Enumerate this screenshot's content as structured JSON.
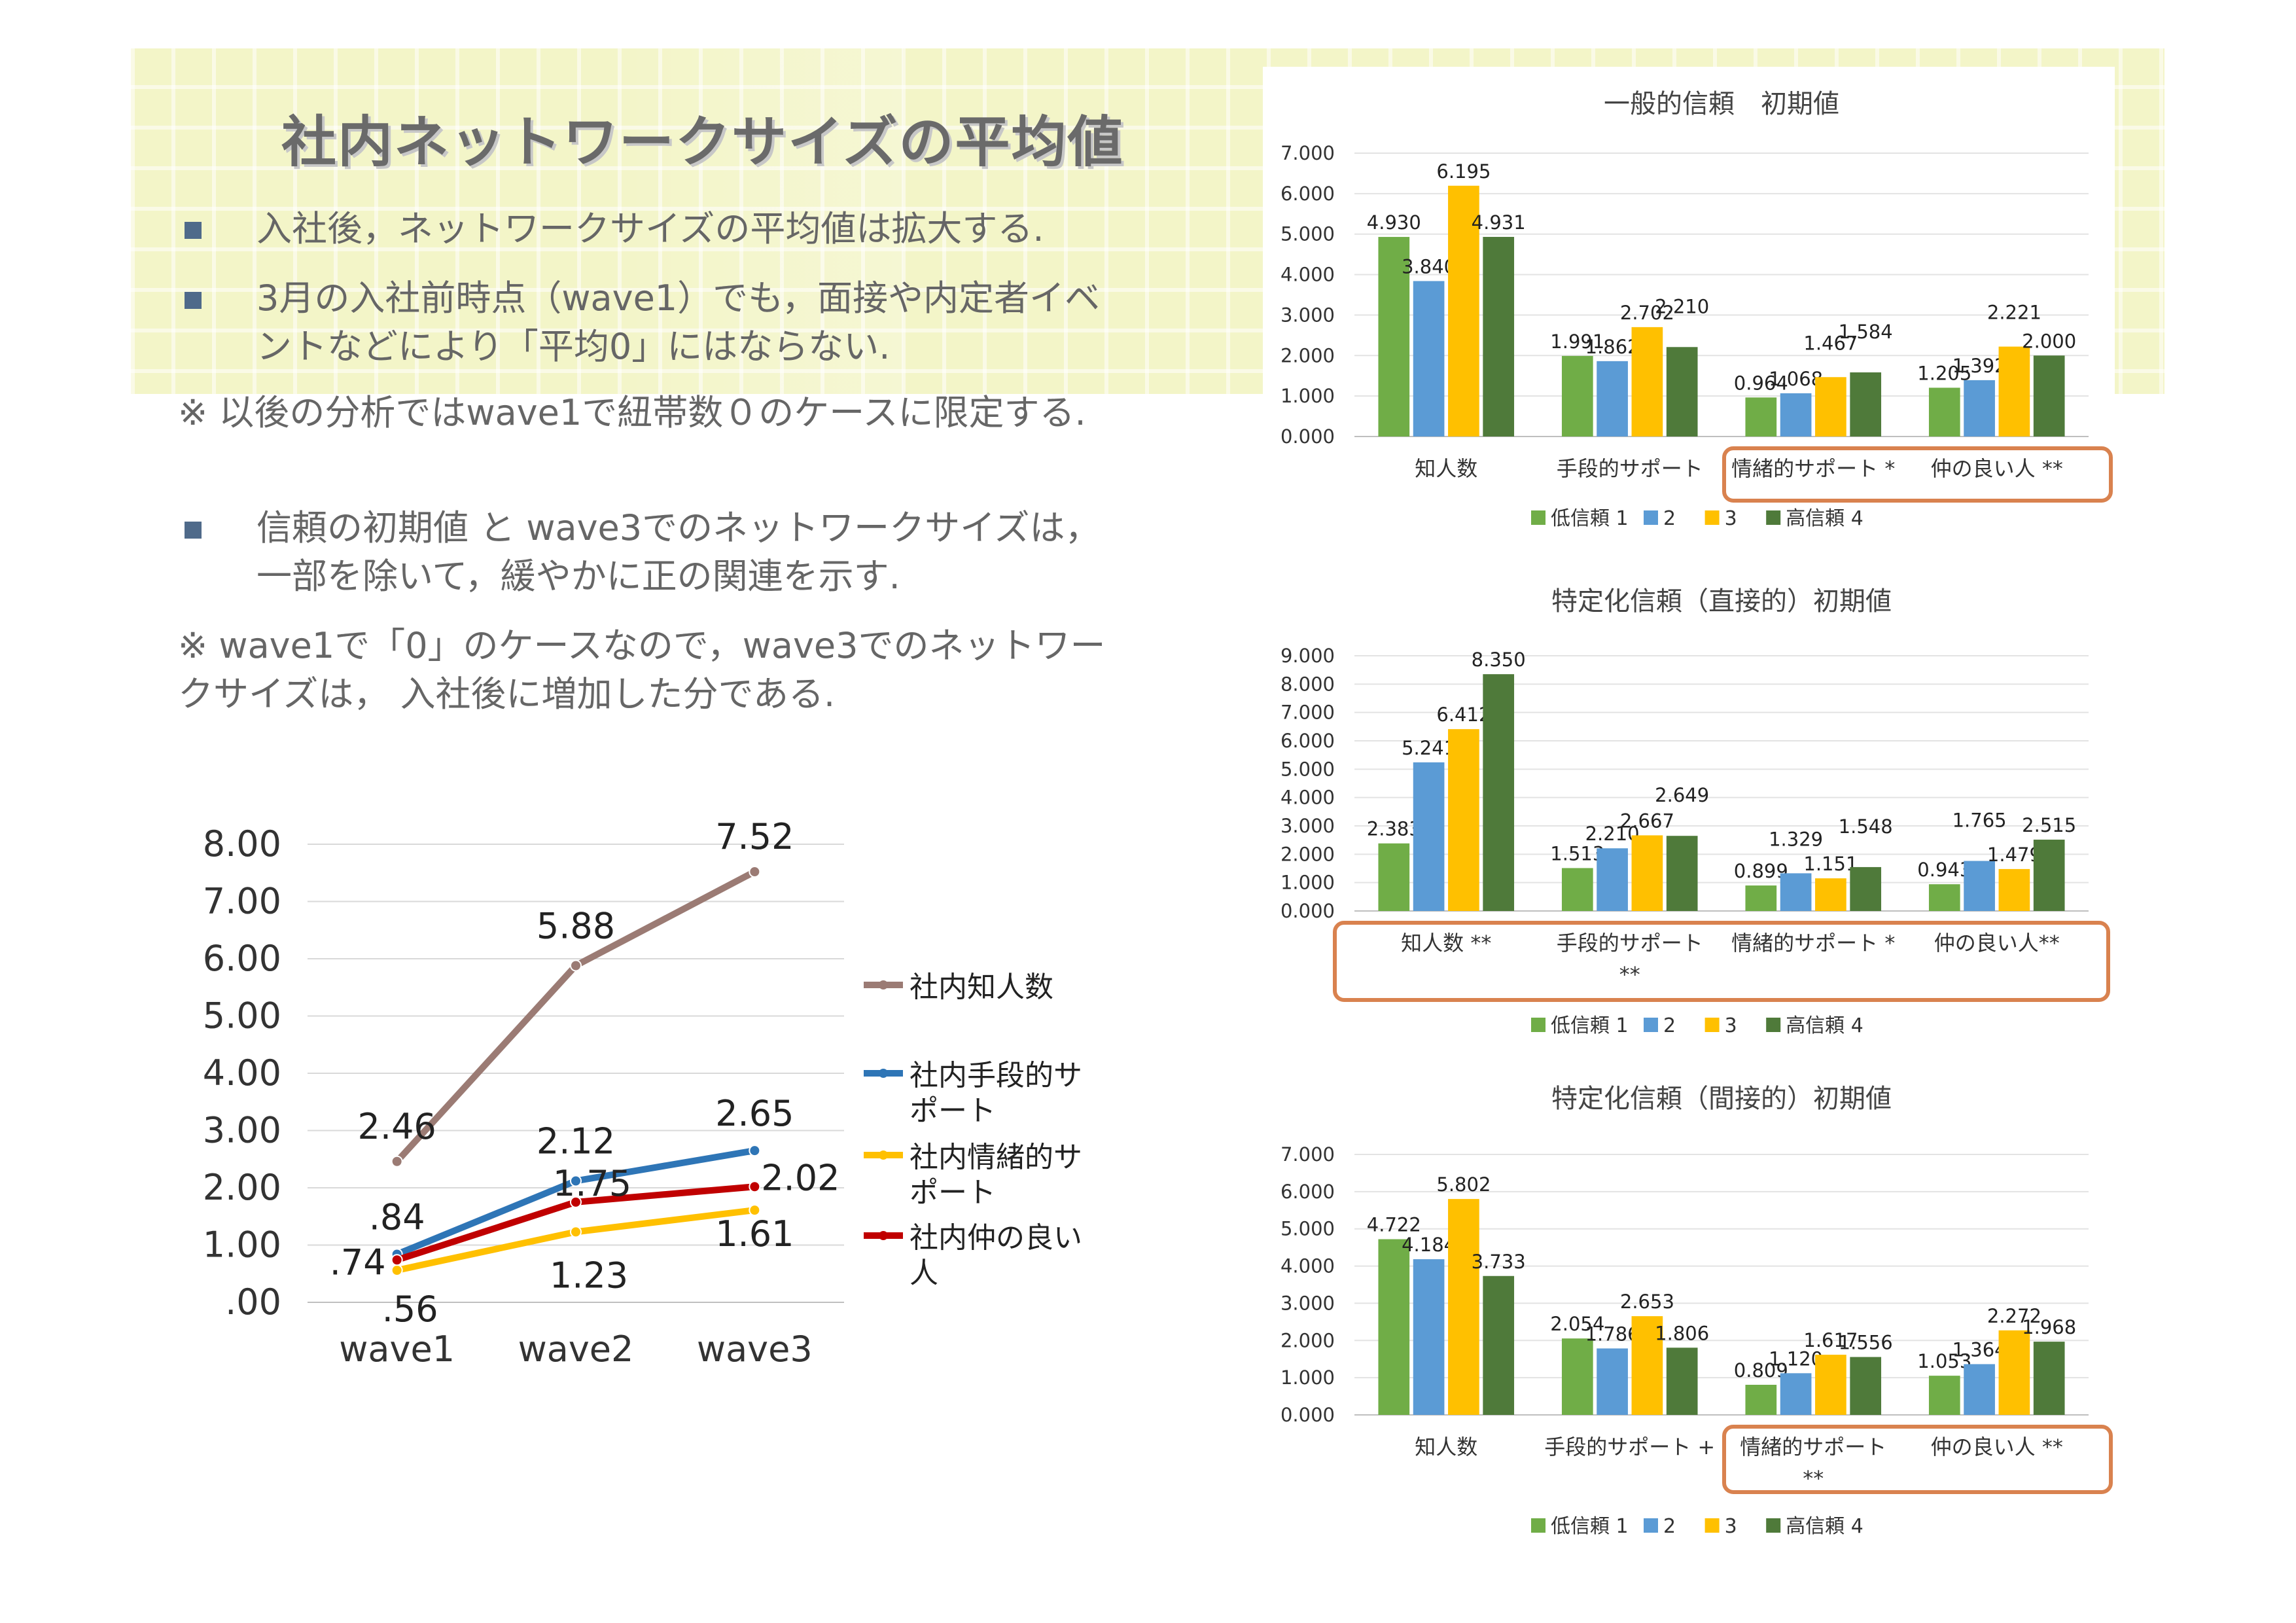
{
  "slide": {
    "title": "社内ネットワークサイズの平均値",
    "bullets": [
      {
        "lines": [
          "入社後，ネットワークサイズの平均値は拡大する."
        ]
      },
      {
        "lines": [
          "3月の入社前時点（wave1）でも，面接や内定者イベ",
          "ントなどにより「平均0」にはならない."
        ]
      },
      {
        "lines": [
          "信頼の初期値 と wave3でのネットワークサイズは，",
          "一部を除いて，緩やかに正の関連を示す."
        ]
      }
    ],
    "notes": [
      {
        "lines": [
          "※ 以後の分析ではwave1で紐帯数０のケースに限定する."
        ]
      },
      {
        "lines": [
          "※ wave1で「0」のケースなので，wave3でのネットワー",
          "クサイズは， 入社後に増加した分である."
        ]
      }
    ]
  },
  "chart_data": [
    {
      "type": "line",
      "title": "",
      "categories": [
        "wave1",
        "wave2",
        "wave3"
      ],
      "ylim": [
        0,
        8
      ],
      "yticks": [
        ".00",
        "1.00",
        "2.00",
        "3.00",
        "4.00",
        "5.00",
        "6.00",
        "7.00",
        "8.00"
      ],
      "grid": true,
      "legend_position": "right",
      "series": [
        {
          "name": "社内知人数",
          "values": [
            2.46,
            5.88,
            7.52
          ],
          "labels": [
            "2.46",
            "5.88",
            "7.52"
          ],
          "color": "#9b7b74"
        },
        {
          "name": "社内手段的サポート",
          "values": [
            0.84,
            2.12,
            2.65
          ],
          "labels": [
            ".84",
            "2.12",
            "2.65"
          ],
          "color": "#2e75b6"
        },
        {
          "name": "社内情緒的サポート",
          "values": [
            0.56,
            1.23,
            1.61
          ],
          "labels": [
            ".56",
            "1.23",
            "1.61"
          ],
          "color": "#ffc000"
        },
        {
          "name": "社内仲の良い人",
          "values": [
            0.74,
            1.75,
            2.02
          ],
          "labels": [
            ".74",
            "1.75",
            "2.02"
          ],
          "color": "#c00000"
        }
      ]
    },
    {
      "type": "bar",
      "title": "一般的信頼　初期値",
      "categories": [
        "知人数",
        "手段的サポート",
        "情緒的サポート *",
        "仲の良い人 **"
      ],
      "ylim": [
        0,
        7
      ],
      "yticks": [
        "0.000",
        "1.000",
        "2.000",
        "3.000",
        "4.000",
        "5.000",
        "6.000",
        "7.000"
      ],
      "legend_position": "bottom",
      "highlight_categories": [
        2,
        3
      ],
      "series": [
        {
          "name": "低信頼 1",
          "color": "#70ad47",
          "values": [
            4.93,
            1.991,
            0.964,
            1.205
          ]
        },
        {
          "name": "2",
          "color": "#5b9bd5",
          "values": [
            3.84,
            1.862,
            1.068,
            1.392
          ]
        },
        {
          "name": "3",
          "color": "#ffc000",
          "values": [
            6.195,
            2.702,
            1.467,
            2.221
          ]
        },
        {
          "name": "高信頼 4",
          "color": "#4f7a3a",
          "values": [
            4.931,
            2.21,
            1.584,
            2.0
          ]
        }
      ]
    },
    {
      "type": "bar",
      "title": "特定化信頼（直接的）初期値",
      "categories": [
        "知人数 **",
        "手段的サポート **",
        "情緒的サポート *",
        "仲の良い人**"
      ],
      "ylim": [
        0,
        9
      ],
      "yticks": [
        "0.000",
        "1.000",
        "2.000",
        "3.000",
        "4.000",
        "5.000",
        "6.000",
        "7.000",
        "8.000",
        "9.000"
      ],
      "legend_position": "bottom",
      "highlight_categories": [
        0,
        1,
        2,
        3
      ],
      "series": [
        {
          "name": "低信頼 1",
          "color": "#70ad47",
          "values": [
            2.383,
            1.513,
            0.899,
            0.943
          ]
        },
        {
          "name": "2",
          "color": "#5b9bd5",
          "values": [
            5.241,
            2.21,
            1.329,
            1.765
          ]
        },
        {
          "name": "3",
          "color": "#ffc000",
          "values": [
            6.412,
            2.667,
            1.151,
            1.479
          ]
        },
        {
          "name": "高信頼 4",
          "color": "#4f7a3a",
          "values": [
            8.35,
            2.649,
            1.548,
            2.515
          ]
        }
      ]
    },
    {
      "type": "bar",
      "title": "特定化信頼（間接的）初期値",
      "categories": [
        "知人数",
        "手段的サポート +",
        "情緒的サポート **",
        "仲の良い人 **"
      ],
      "ylim": [
        0,
        7
      ],
      "yticks": [
        "0.000",
        "1.000",
        "2.000",
        "3.000",
        "4.000",
        "5.000",
        "6.000",
        "7.000"
      ],
      "legend_position": "bottom",
      "highlight_categories": [
        2,
        3
      ],
      "series": [
        {
          "name": "低信頼 1",
          "color": "#70ad47",
          "values": [
            4.722,
            2.054,
            0.809,
            1.053
          ]
        },
        {
          "name": "2",
          "color": "#5b9bd5",
          "values": [
            4.184,
            1.786,
            1.12,
            1.364
          ]
        },
        {
          "name": "3",
          "color": "#ffc000",
          "values": [
            5.802,
            2.653,
            1.617,
            2.272
          ]
        },
        {
          "name": "高信頼 4",
          "color": "#4f7a3a",
          "values": [
            3.733,
            1.806,
            1.556,
            1.968
          ]
        }
      ]
    }
  ]
}
